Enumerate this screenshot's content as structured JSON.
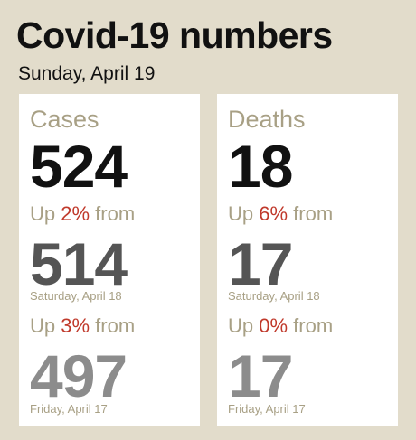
{
  "header": {
    "title": "Covid-19 numbers",
    "date": "Sunday, April 19"
  },
  "colors": {
    "background": "#e2dccb",
    "card": "#ffffff",
    "label": "#a8a085",
    "increase": "#c0392b",
    "current_number": "#111111",
    "prev1_number": "#555555",
    "prev2_number": "#8c8c8c"
  },
  "cases": {
    "label": "Cases",
    "current": "524",
    "change1": {
      "prefix": "Up ",
      "pct": "2%",
      "suffix": " from"
    },
    "prev1": {
      "value": "514",
      "date": "Saturday, April 18"
    },
    "change2": {
      "prefix": "Up ",
      "pct": "3%",
      "suffix": " from"
    },
    "prev2": {
      "value": "497",
      "date": "Friday, April 17"
    }
  },
  "deaths": {
    "label": "Deaths",
    "current": "18",
    "change1": {
      "prefix": "Up ",
      "pct": "6%",
      "suffix": " from"
    },
    "prev1": {
      "value": "17",
      "date": "Saturday, April 18"
    },
    "change2": {
      "prefix": "Up ",
      "pct": "0%",
      "suffix": " from"
    },
    "prev2": {
      "value": "17",
      "date": "Friday, April 17"
    }
  }
}
